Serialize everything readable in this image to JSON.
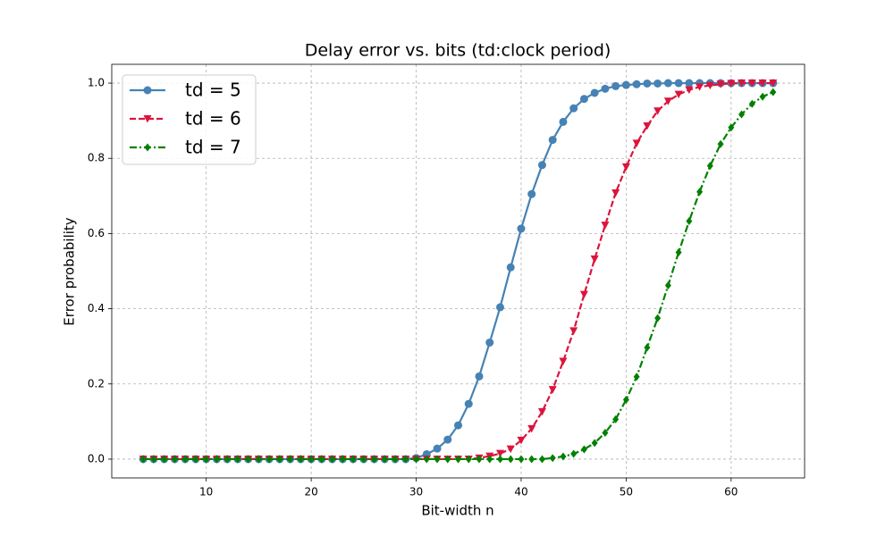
{
  "chart_data": {
    "type": "line",
    "title": "Delay error vs. bits (td:clock period)",
    "x_label": "Bit-width n",
    "y_label": "Error probability",
    "x": [
      4,
      5,
      6,
      7,
      8,
      9,
      10,
      11,
      12,
      13,
      14,
      15,
      16,
      17,
      18,
      19,
      20,
      21,
      22,
      23,
      24,
      25,
      26,
      27,
      28,
      29,
      30,
      31,
      32,
      33,
      34,
      35,
      36,
      37,
      38,
      39,
      40,
      41,
      42,
      43,
      44,
      45,
      46,
      47,
      48,
      49,
      50,
      51,
      52,
      53,
      54,
      55,
      56,
      57,
      58,
      59,
      60,
      61,
      62,
      63,
      64
    ],
    "series": [
      {
        "name": "td = 5",
        "color": "#4682b4",
        "line_style": "solid",
        "marker": "circle",
        "values": [
          0,
          0,
          0,
          0,
          0,
          0,
          0,
          0,
          0,
          0,
          0,
          0,
          0,
          0,
          0,
          0,
          0,
          0,
          0,
          0,
          0,
          0,
          0,
          0,
          0,
          0,
          0.003,
          0.013,
          0.028,
          0.052,
          0.09,
          0.147,
          0.22,
          0.31,
          0.404,
          0.51,
          0.613,
          0.705,
          0.782,
          0.849,
          0.897,
          0.933,
          0.958,
          0.974,
          0.985,
          0.992,
          0.995,
          0.997,
          0.999,
          0.999,
          1,
          1,
          1,
          1,
          1,
          1,
          1,
          1,
          1,
          1,
          1
        ]
      },
      {
        "name": "td = 6",
        "color": "#dc143c",
        "line_style": "dashed",
        "marker": "triangle-down",
        "values": [
          0,
          0,
          0,
          0,
          0,
          0,
          0,
          0,
          0,
          0,
          0,
          0,
          0,
          0,
          0,
          0,
          0,
          0,
          0,
          0,
          0,
          0,
          0,
          0,
          0,
          0,
          0,
          0,
          0,
          0,
          0,
          0,
          0.003,
          0.008,
          0.015,
          0.027,
          0.05,
          0.081,
          0.126,
          0.185,
          0.26,
          0.341,
          0.438,
          0.532,
          0.622,
          0.708,
          0.777,
          0.84,
          0.886,
          0.926,
          0.952,
          0.97,
          0.982,
          0.99,
          0.994,
          0.997,
          0.999,
          1,
          1,
          1,
          1
        ]
      },
      {
        "name": "td = 7",
        "color": "#008000",
        "line_style": "dashdot",
        "marker": "diamond",
        "values": [
          0,
          0,
          0,
          0,
          0,
          0,
          0,
          0,
          0,
          0,
          0,
          0,
          0,
          0,
          0,
          0,
          0,
          0,
          0,
          0,
          0,
          0,
          0,
          0,
          0,
          0,
          0,
          0,
          0,
          0,
          0,
          0,
          0,
          0,
          0,
          0,
          0,
          0,
          0,
          0.003,
          0.007,
          0.014,
          0.026,
          0.043,
          0.07,
          0.106,
          0.158,
          0.219,
          0.297,
          0.375,
          0.462,
          0.55,
          0.633,
          0.711,
          0.78,
          0.838,
          0.882,
          0.917,
          0.945,
          0.964,
          0.976
        ]
      }
    ],
    "xlim": [
      1,
      67
    ],
    "ylim": [
      -0.05,
      1.05
    ],
    "xticks": [
      10,
      20,
      30,
      40,
      50,
      60
    ],
    "yticks": [
      {
        "value": 0,
        "label": "0.0"
      },
      0.2,
      0.4,
      0.6,
      0.8,
      {
        "value": 1,
        "label": "1.0"
      }
    ],
    "grid": true,
    "legend": "upper left"
  }
}
